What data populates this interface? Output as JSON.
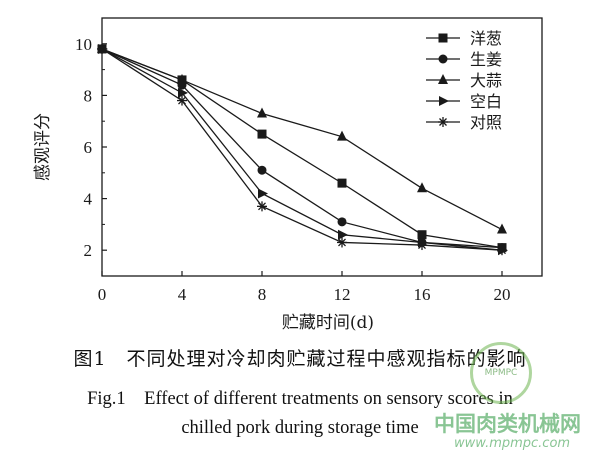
{
  "chart_data": {
    "type": "line",
    "x": [
      0,
      4,
      8,
      12,
      16,
      20
    ],
    "xlabel": "贮藏时间(d)",
    "ylabel": "感观评分",
    "xlim": [
      0,
      22
    ],
    "ylim": [
      1,
      11
    ],
    "xticks": [
      "0",
      "4",
      "8",
      "12",
      "16",
      "20"
    ],
    "yticks": [
      "2",
      "4",
      "6",
      "8",
      "10"
    ],
    "legend_position": "top-right",
    "series": [
      {
        "name": "洋葱",
        "marker": "square",
        "values": [
          9.8,
          8.6,
          6.5,
          4.6,
          2.6,
          2.1
        ]
      },
      {
        "name": "生姜",
        "marker": "circle",
        "values": [
          9.8,
          8.4,
          5.1,
          3.1,
          2.3,
          2.1
        ]
      },
      {
        "name": "大蒜",
        "marker": "triangle-up",
        "values": [
          9.8,
          8.6,
          7.3,
          6.4,
          4.4,
          2.8
        ]
      },
      {
        "name": "空白",
        "marker": "triangle-right",
        "values": [
          9.8,
          8.1,
          4.2,
          2.6,
          2.3,
          2.0
        ]
      },
      {
        "name": "对照",
        "marker": "asterisk",
        "values": [
          9.8,
          7.8,
          3.7,
          2.3,
          2.2,
          2.0
        ]
      }
    ]
  },
  "caption": {
    "zh": "图1　不同处理对冷却肉贮藏过程中感观指标的影响",
    "en_line1": "Fig.1　Effect of different treatments on sensory scores in",
    "en_line2": "chilled pork during storage time"
  },
  "watermark": {
    "logo_text": "MPMPC",
    "name": "中国肉类机械网",
    "url": "www.mpmpc.com"
  },
  "colors": {
    "line": "#1a1a1a",
    "background": "#ffffff"
  }
}
